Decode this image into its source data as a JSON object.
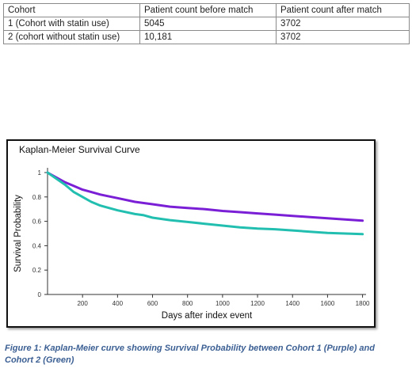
{
  "table": {
    "headers": [
      "Cohort",
      "Patient count before match",
      "Patient count after match"
    ],
    "rows": [
      [
        "1 (Cohort with statin use)",
        "5045",
        "3702"
      ],
      [
        "2 (cohort without statin use)",
        "10,181",
        "3702"
      ]
    ]
  },
  "chart_data": {
    "type": "line",
    "title": "Kaplan-Meier Survival Curve",
    "xlabel": "Days after index event",
    "ylabel": "Survival Probability",
    "xlim": [
      0,
      1820
    ],
    "ylim": [
      0,
      1
    ],
    "xticks": [
      200,
      400,
      600,
      800,
      1000,
      1200,
      1400,
      1600,
      1800
    ],
    "yticks": [
      0,
      0.2,
      0.4,
      0.6,
      0.8,
      1
    ],
    "ytick_labels": [
      "0",
      "0.2",
      "0.4",
      "0.6",
      "0.8",
      "1"
    ],
    "grid": false,
    "series": [
      {
        "color": "#7a1fd6",
        "x": [
          0,
          50,
          100,
          150,
          200,
          250,
          300,
          400,
          500,
          600,
          700,
          800,
          900,
          1000,
          1100,
          1200,
          1300,
          1400,
          1500,
          1600,
          1700,
          1800
        ],
        "y": [
          1.0,
          0.96,
          0.92,
          0.89,
          0.86,
          0.84,
          0.82,
          0.79,
          0.76,
          0.74,
          0.72,
          0.71,
          0.7,
          0.685,
          0.675,
          0.665,
          0.655,
          0.645,
          0.635,
          0.625,
          0.615,
          0.605
        ]
      },
      {
        "color": "#22bfb0",
        "x": [
          0,
          50,
          100,
          150,
          200,
          250,
          300,
          400,
          500,
          550,
          600,
          700,
          800,
          900,
          1000,
          1100,
          1200,
          1300,
          1400,
          1500,
          1600,
          1700,
          1800
        ],
        "y": [
          1.0,
          0.95,
          0.9,
          0.84,
          0.8,
          0.76,
          0.73,
          0.69,
          0.66,
          0.65,
          0.63,
          0.61,
          0.595,
          0.58,
          0.565,
          0.55,
          0.54,
          0.535,
          0.525,
          0.515,
          0.505,
          0.5,
          0.495
        ]
      }
    ]
  },
  "caption": "Figure 1: Kaplan-Meier curve showing Survival Probability between Cohort 1 (Purple) and Cohort 2 (Green)"
}
